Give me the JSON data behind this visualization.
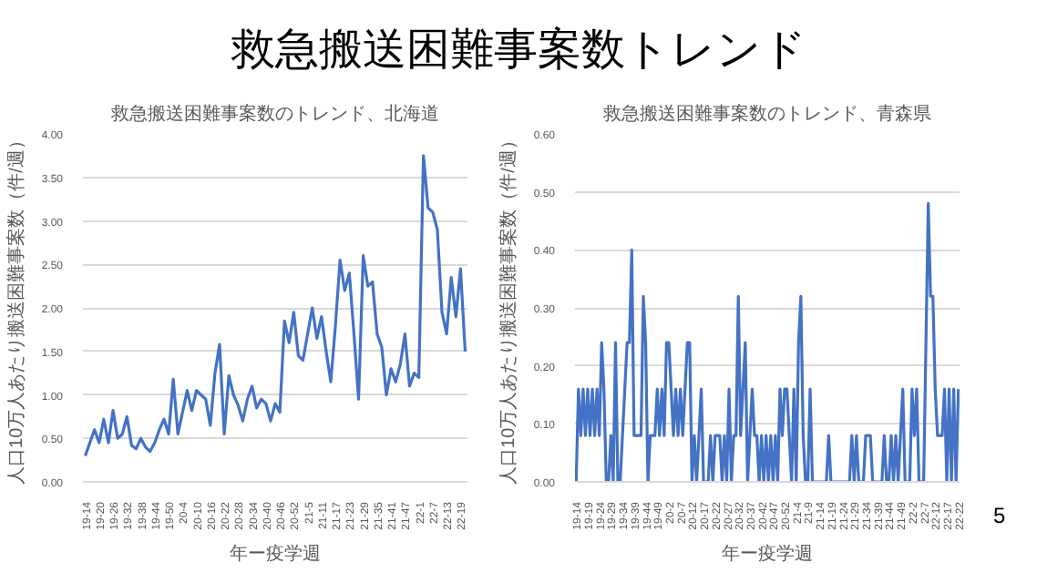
{
  "chart_data": [
    {
      "type": "line",
      "title": "救急搬送困難事案数のトレンド、北海道",
      "xlabel": "年ー疫学週",
      "ylabel": "人口10万人あたり搬送困難事案数（件/週）",
      "annotations": [
        "救急搬送困難事案数トレンド",
        "5"
      ],
      "categories": [
        "19-14",
        null,
        null,
        "19-20",
        null,
        null,
        "19-26",
        null,
        null,
        "19-32",
        null,
        null,
        "19-38",
        null,
        null,
        "19-44",
        null,
        null,
        "19-50",
        null,
        null,
        "20-4",
        null,
        null,
        "20-10",
        null,
        null,
        "20-16",
        null,
        null,
        "20-22",
        null,
        null,
        "20-28",
        null,
        null,
        "20-34",
        null,
        null,
        "20-40",
        null,
        null,
        "20-46",
        null,
        null,
        "20-52",
        null,
        null,
        "21-5",
        null,
        null,
        "21-11",
        null,
        null,
        "21-17",
        null,
        null,
        "21-23",
        null,
        null,
        "21-29",
        null,
        null,
        "21-35",
        null,
        null,
        "21-41",
        null,
        null,
        "21-47",
        null,
        null,
        "22-1",
        null,
        null,
        "22-7",
        null,
        null,
        "22-13",
        null,
        null,
        "22-19",
        null
      ],
      "values": [
        0.3,
        0.45,
        0.6,
        0.45,
        0.72,
        0.45,
        0.82,
        0.5,
        0.55,
        0.75,
        0.42,
        0.38,
        0.5,
        0.4,
        0.35,
        0.45,
        0.6,
        0.72,
        0.55,
        1.18,
        0.55,
        0.8,
        1.05,
        0.82,
        1.05,
        1.0,
        0.95,
        0.65,
        1.25,
        1.58,
        0.55,
        1.22,
        1.0,
        0.88,
        0.7,
        0.95,
        1.1,
        0.85,
        0.95,
        0.9,
        0.7,
        0.9,
        0.8,
        1.85,
        1.6,
        1.95,
        1.45,
        1.4,
        1.7,
        2.0,
        1.65,
        1.9,
        1.5,
        1.15,
        1.8,
        2.55,
        2.2,
        2.4,
        1.7,
        0.95,
        2.6,
        2.25,
        2.3,
        1.7,
        1.55,
        1.0,
        1.3,
        1.15,
        1.35,
        1.7,
        1.1,
        1.25,
        1.2,
        3.75,
        3.15,
        3.1,
        2.9,
        1.95,
        1.7,
        2.35,
        1.9,
        2.45,
        1.5
      ],
      "color": "#4472c4",
      "ylim": [
        0,
        4
      ],
      "yticks": [
        {
          "value": 0,
          "label": "0.00"
        },
        {
          "value": 0.5,
          "label": "0.50"
        },
        {
          "value": 1,
          "label": "1.00"
        },
        {
          "value": 1.5,
          "label": "1.50"
        },
        {
          "value": 2,
          "label": "2.00"
        },
        {
          "value": 2.5,
          "label": "2.50"
        },
        {
          "value": 3,
          "label": "3.00"
        },
        {
          "value": 3.5,
          "label": "3.50"
        },
        {
          "value": 4,
          "label": "4.00"
        }
      ],
      "grid": "y"
    },
    {
      "type": "line",
      "title": "救急搬送困難事案数のトレンド、青森県",
      "xlabel": "年ー疫学週",
      "ylabel": "人口10万人あたり搬送困難事案数（件/週）",
      "categories": [
        "19-14",
        null,
        null,
        null,
        null,
        "19-19",
        null,
        null,
        null,
        null,
        "19-24",
        null,
        null,
        null,
        null,
        "19-29",
        null,
        null,
        null,
        null,
        "19-34",
        null,
        null,
        null,
        null,
        "19-39",
        null,
        null,
        null,
        null,
        "19-44",
        null,
        null,
        null,
        null,
        "19-49",
        null,
        null,
        null,
        null,
        "20-2",
        null,
        null,
        null,
        null,
        "20-7",
        null,
        null,
        null,
        null,
        "20-12",
        null,
        null,
        null,
        null,
        "20-17",
        null,
        null,
        null,
        null,
        "20-22",
        null,
        null,
        null,
        null,
        "20-27",
        null,
        null,
        null,
        null,
        "20-32",
        null,
        null,
        null,
        null,
        "20-37",
        null,
        null,
        null,
        null,
        "20-42",
        null,
        null,
        null,
        null,
        "20-47",
        null,
        null,
        null,
        null,
        "20-52",
        null,
        null,
        null,
        null,
        "21-4",
        null,
        null,
        null,
        null,
        "21-9",
        null,
        null,
        null,
        null,
        "21-14",
        null,
        null,
        null,
        null,
        "21-19",
        null,
        null,
        null,
        null,
        "21-24",
        null,
        null,
        null,
        null,
        "21-29",
        null,
        null,
        null,
        null,
        "21-34",
        null,
        null,
        null,
        null,
        "21-39",
        null,
        null,
        null,
        null,
        "21-44",
        null,
        null,
        null,
        null,
        "21-49",
        null,
        null,
        null,
        null,
        "22-2",
        null,
        null,
        null,
        null,
        "22-7",
        null,
        null,
        null,
        null,
        "22-12",
        null,
        null,
        null,
        null,
        "22-17",
        null,
        null,
        null,
        null,
        "22-22"
      ],
      "values": [
        0,
        0.16,
        0.08,
        0.16,
        0.08,
        0.16,
        0.08,
        0.16,
        0.08,
        0.16,
        0.08,
        0.24,
        0.16,
        0,
        0,
        0.08,
        0,
        0.24,
        0,
        0,
        0.08,
        0.16,
        0.24,
        0.24,
        0.4,
        0.08,
        0.08,
        0.08,
        0.08,
        0.32,
        0.24,
        0,
        0.08,
        0.08,
        0.08,
        0.16,
        0.08,
        0.16,
        0.08,
        0.24,
        0.24,
        0.16,
        0.08,
        0.16,
        0.08,
        0.16,
        0.08,
        0.16,
        0.24,
        0.24,
        0,
        0.08,
        0,
        0.08,
        0.16,
        0,
        0,
        0,
        0.08,
        0,
        0.08,
        0.08,
        0.08,
        0,
        0.08,
        0,
        0.16,
        0,
        0.08,
        0.08,
        0.32,
        0.08,
        0.16,
        0.24,
        0,
        0.08,
        0.16,
        0.08,
        0.08,
        0,
        0.08,
        0,
        0.08,
        0,
        0.08,
        0,
        0.08,
        0,
        0.16,
        0.08,
        0.16,
        0.16,
        0.08,
        0,
        0.16,
        0,
        0.24,
        0.32,
        0.08,
        0,
        0,
        0.16,
        0,
        0,
        0,
        0,
        0,
        0,
        0,
        0.08,
        0,
        0,
        0,
        0,
        0,
        0,
        0,
        0,
        0,
        0.08,
        0,
        0.08,
        0,
        0,
        0,
        0.08,
        0.08,
        0.08,
        0,
        0,
        0,
        0,
        0,
        0.08,
        0,
        0,
        0.08,
        0,
        0.08,
        0,
        0.08,
        0.16,
        0,
        0,
        0,
        0.16,
        0.08,
        0.16,
        0,
        0,
        0,
        0.24,
        0.48,
        0.32,
        0.32,
        0.16,
        0.08,
        0.08,
        0.08,
        0.16,
        0,
        0.16,
        0,
        0.16,
        0,
        0.16
      ],
      "color": "#4472c4",
      "ylim": [
        0,
        0.6
      ],
      "yticks": [
        {
          "value": 0,
          "label": "0.00"
        },
        {
          "value": 0.1,
          "label": "0.10"
        },
        {
          "value": 0.2,
          "label": "0.20"
        },
        {
          "value": 0.3,
          "label": "0.30"
        },
        {
          "value": 0.4,
          "label": "0.40"
        },
        {
          "value": 0.5,
          "label": "0.50"
        },
        {
          "value": 0.6,
          "label": "0.60"
        }
      ],
      "grid": "y"
    }
  ]
}
